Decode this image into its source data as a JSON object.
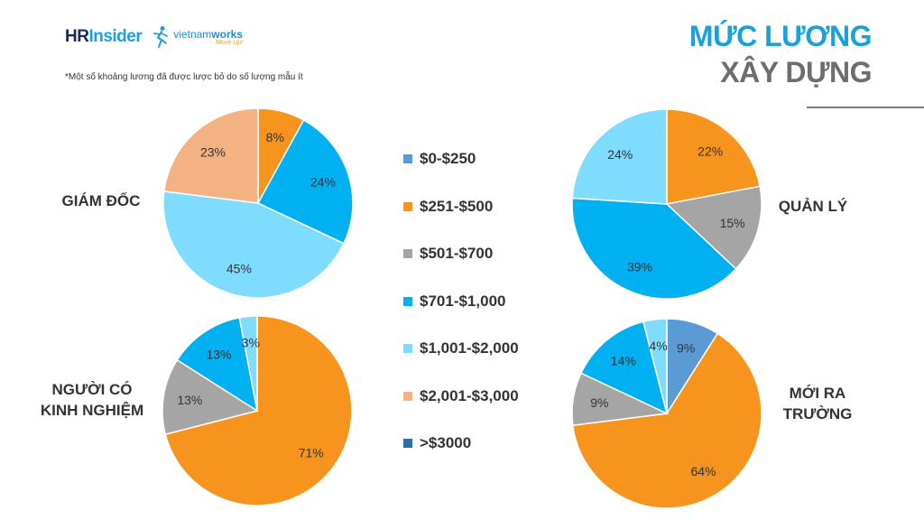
{
  "header": {
    "brand_hr": "HR",
    "brand_insider": "Insider",
    "brand_vietnam": "vietnam",
    "brand_works": "works",
    "brand_tagline": "Move Up!",
    "note": "*Một số khoảng lương đã được lược bỏ do số lượng mẫu ít",
    "title_line1": "MỨC LƯƠNG",
    "title_line2": "XÂY DỰNG"
  },
  "colors": {
    "title_blue": "#1aa0dc",
    "title_gray": "#6d6d6d"
  },
  "chart_data": {
    "type": "pie",
    "legend": [
      {
        "label": "$0-$250",
        "color": "#5b9bd5"
      },
      {
        "label": "$251-$500",
        "color": "#f7941d"
      },
      {
        "label": "$501-$700",
        "color": "#a5a5a5"
      },
      {
        "label": "$701-$1,000",
        "color": "#00b0f0"
      },
      {
        "label": "$1,001-$2,000",
        "color": "#7fdcff"
      },
      {
        "label": "$2,001-$3,000",
        "color": "#f4b183"
      },
      {
        "label": ">$3000",
        "color": "#2e6ea6"
      }
    ],
    "charts": [
      {
        "label": "GIÁM ĐỐC",
        "slices": [
          {
            "category": "$251-$500",
            "value": 8,
            "label": "8%"
          },
          {
            "category": "$701-$1,000",
            "value": 24,
            "label": "24%"
          },
          {
            "category": "$1,001-$2,000",
            "value": 45,
            "label": "45%"
          },
          {
            "category": "$2,001-$3,000",
            "value": 23,
            "label": "23%"
          }
        ]
      },
      {
        "label": "QUẢN LÝ",
        "slices": [
          {
            "category": "$251-$500",
            "value": 22,
            "label": "22%"
          },
          {
            "category": "$501-$700",
            "value": 15,
            "label": "15%"
          },
          {
            "category": "$701-$1,000",
            "value": 39,
            "label": "39%"
          },
          {
            "category": "$1,001-$2,000",
            "value": 24,
            "label": "24%"
          }
        ]
      },
      {
        "label": "NGƯỜI CÓ\nKINH NGHIỆM",
        "slices": [
          {
            "category": "$251-$500",
            "value": 71,
            "label": "71%"
          },
          {
            "category": "$501-$700",
            "value": 13,
            "label": "13%"
          },
          {
            "category": "$701-$1,000",
            "value": 13,
            "label": "13%"
          },
          {
            "category": "$1,001-$2,000",
            "value": 3,
            "label": "3%"
          }
        ]
      },
      {
        "label": "MỚI RA\nTRƯỜNG",
        "slices": [
          {
            "category": "$0-$250",
            "value": 9,
            "label": "9%"
          },
          {
            "category": "$251-$500",
            "value": 64,
            "label": "64%"
          },
          {
            "category": "$501-$700",
            "value": 9,
            "label": "9%"
          },
          {
            "category": "$701-$1,000",
            "value": 14,
            "label": "14%"
          },
          {
            "category": "$1,001-$2,000",
            "value": 4,
            "label": "4%"
          }
        ]
      }
    ]
  }
}
